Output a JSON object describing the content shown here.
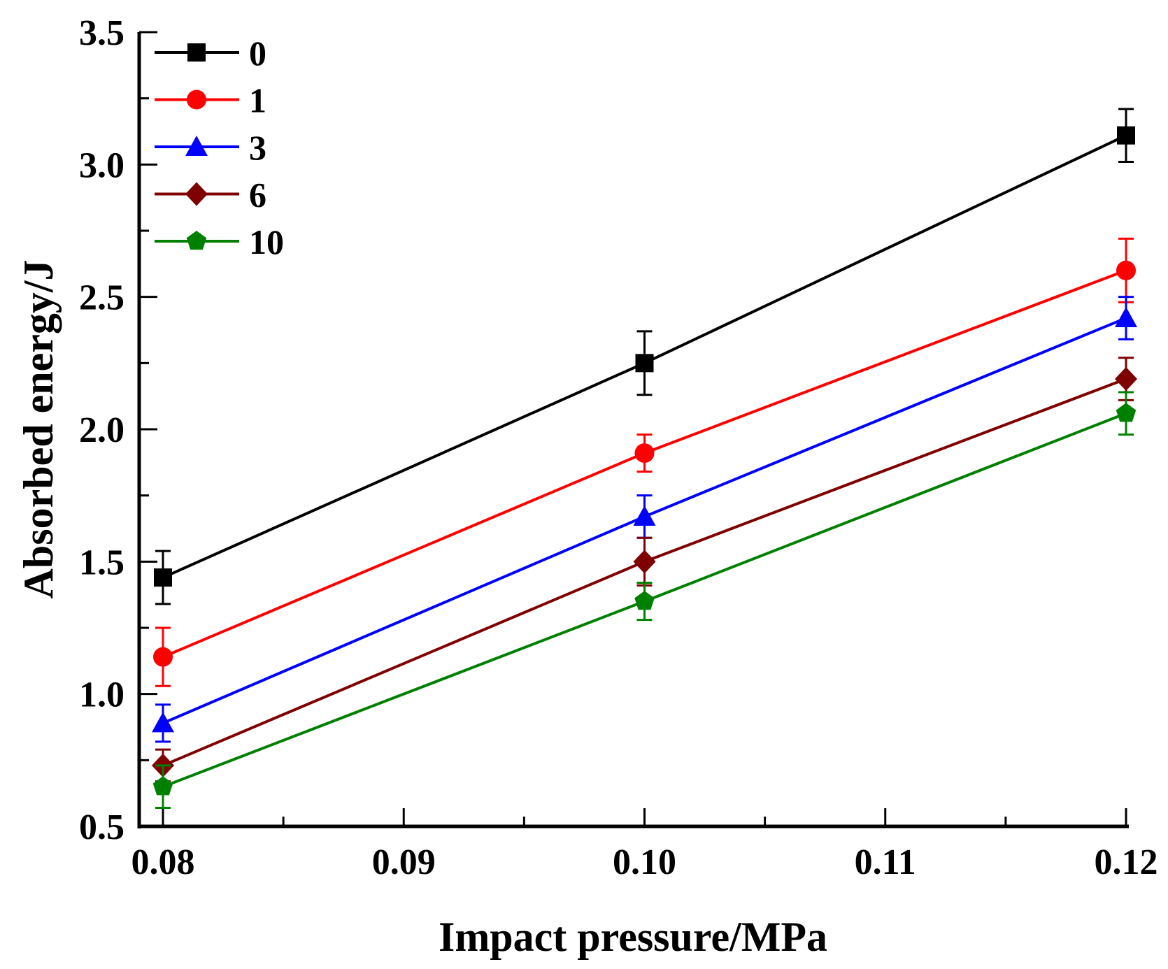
{
  "chart_data": {
    "type": "line",
    "title": "",
    "xlabel": "Impact pressure/MPa",
    "ylabel": "Absorbed energy/J",
    "xlim": [
      0.08,
      0.12
    ],
    "ylim": [
      0.5,
      3.5
    ],
    "xticks": [
      "0.08",
      "0.09",
      "0.10",
      "0.11",
      "0.12"
    ],
    "yticks": [
      "0.5",
      "1.0",
      "1.5",
      "2.0",
      "2.5",
      "3.0",
      "3.5"
    ],
    "grid": false,
    "legend_position": "top-left",
    "x": [
      0.08,
      0.1,
      0.12
    ],
    "series": [
      {
        "name": "0",
        "color": "#000000",
        "marker": "square",
        "values": [
          1.44,
          2.25,
          3.11
        ],
        "errors": [
          0.1,
          0.12,
          0.1
        ]
      },
      {
        "name": "1",
        "color": "#ff0000",
        "marker": "circle",
        "values": [
          1.14,
          1.91,
          2.6
        ],
        "errors": [
          0.11,
          0.07,
          0.12
        ]
      },
      {
        "name": "3",
        "color": "#0000ff",
        "marker": "triangle",
        "values": [
          0.89,
          1.67,
          2.42
        ],
        "errors": [
          0.07,
          0.08,
          0.08
        ]
      },
      {
        "name": "6",
        "color": "#7f0000",
        "marker": "diamond",
        "values": [
          0.73,
          1.5,
          2.19
        ],
        "errors": [
          0.06,
          0.09,
          0.08
        ]
      },
      {
        "name": "10",
        "color": "#008000",
        "marker": "pentagon",
        "values": [
          0.65,
          1.35,
          2.06
        ],
        "errors": [
          0.08,
          0.07,
          0.08
        ]
      }
    ]
  }
}
